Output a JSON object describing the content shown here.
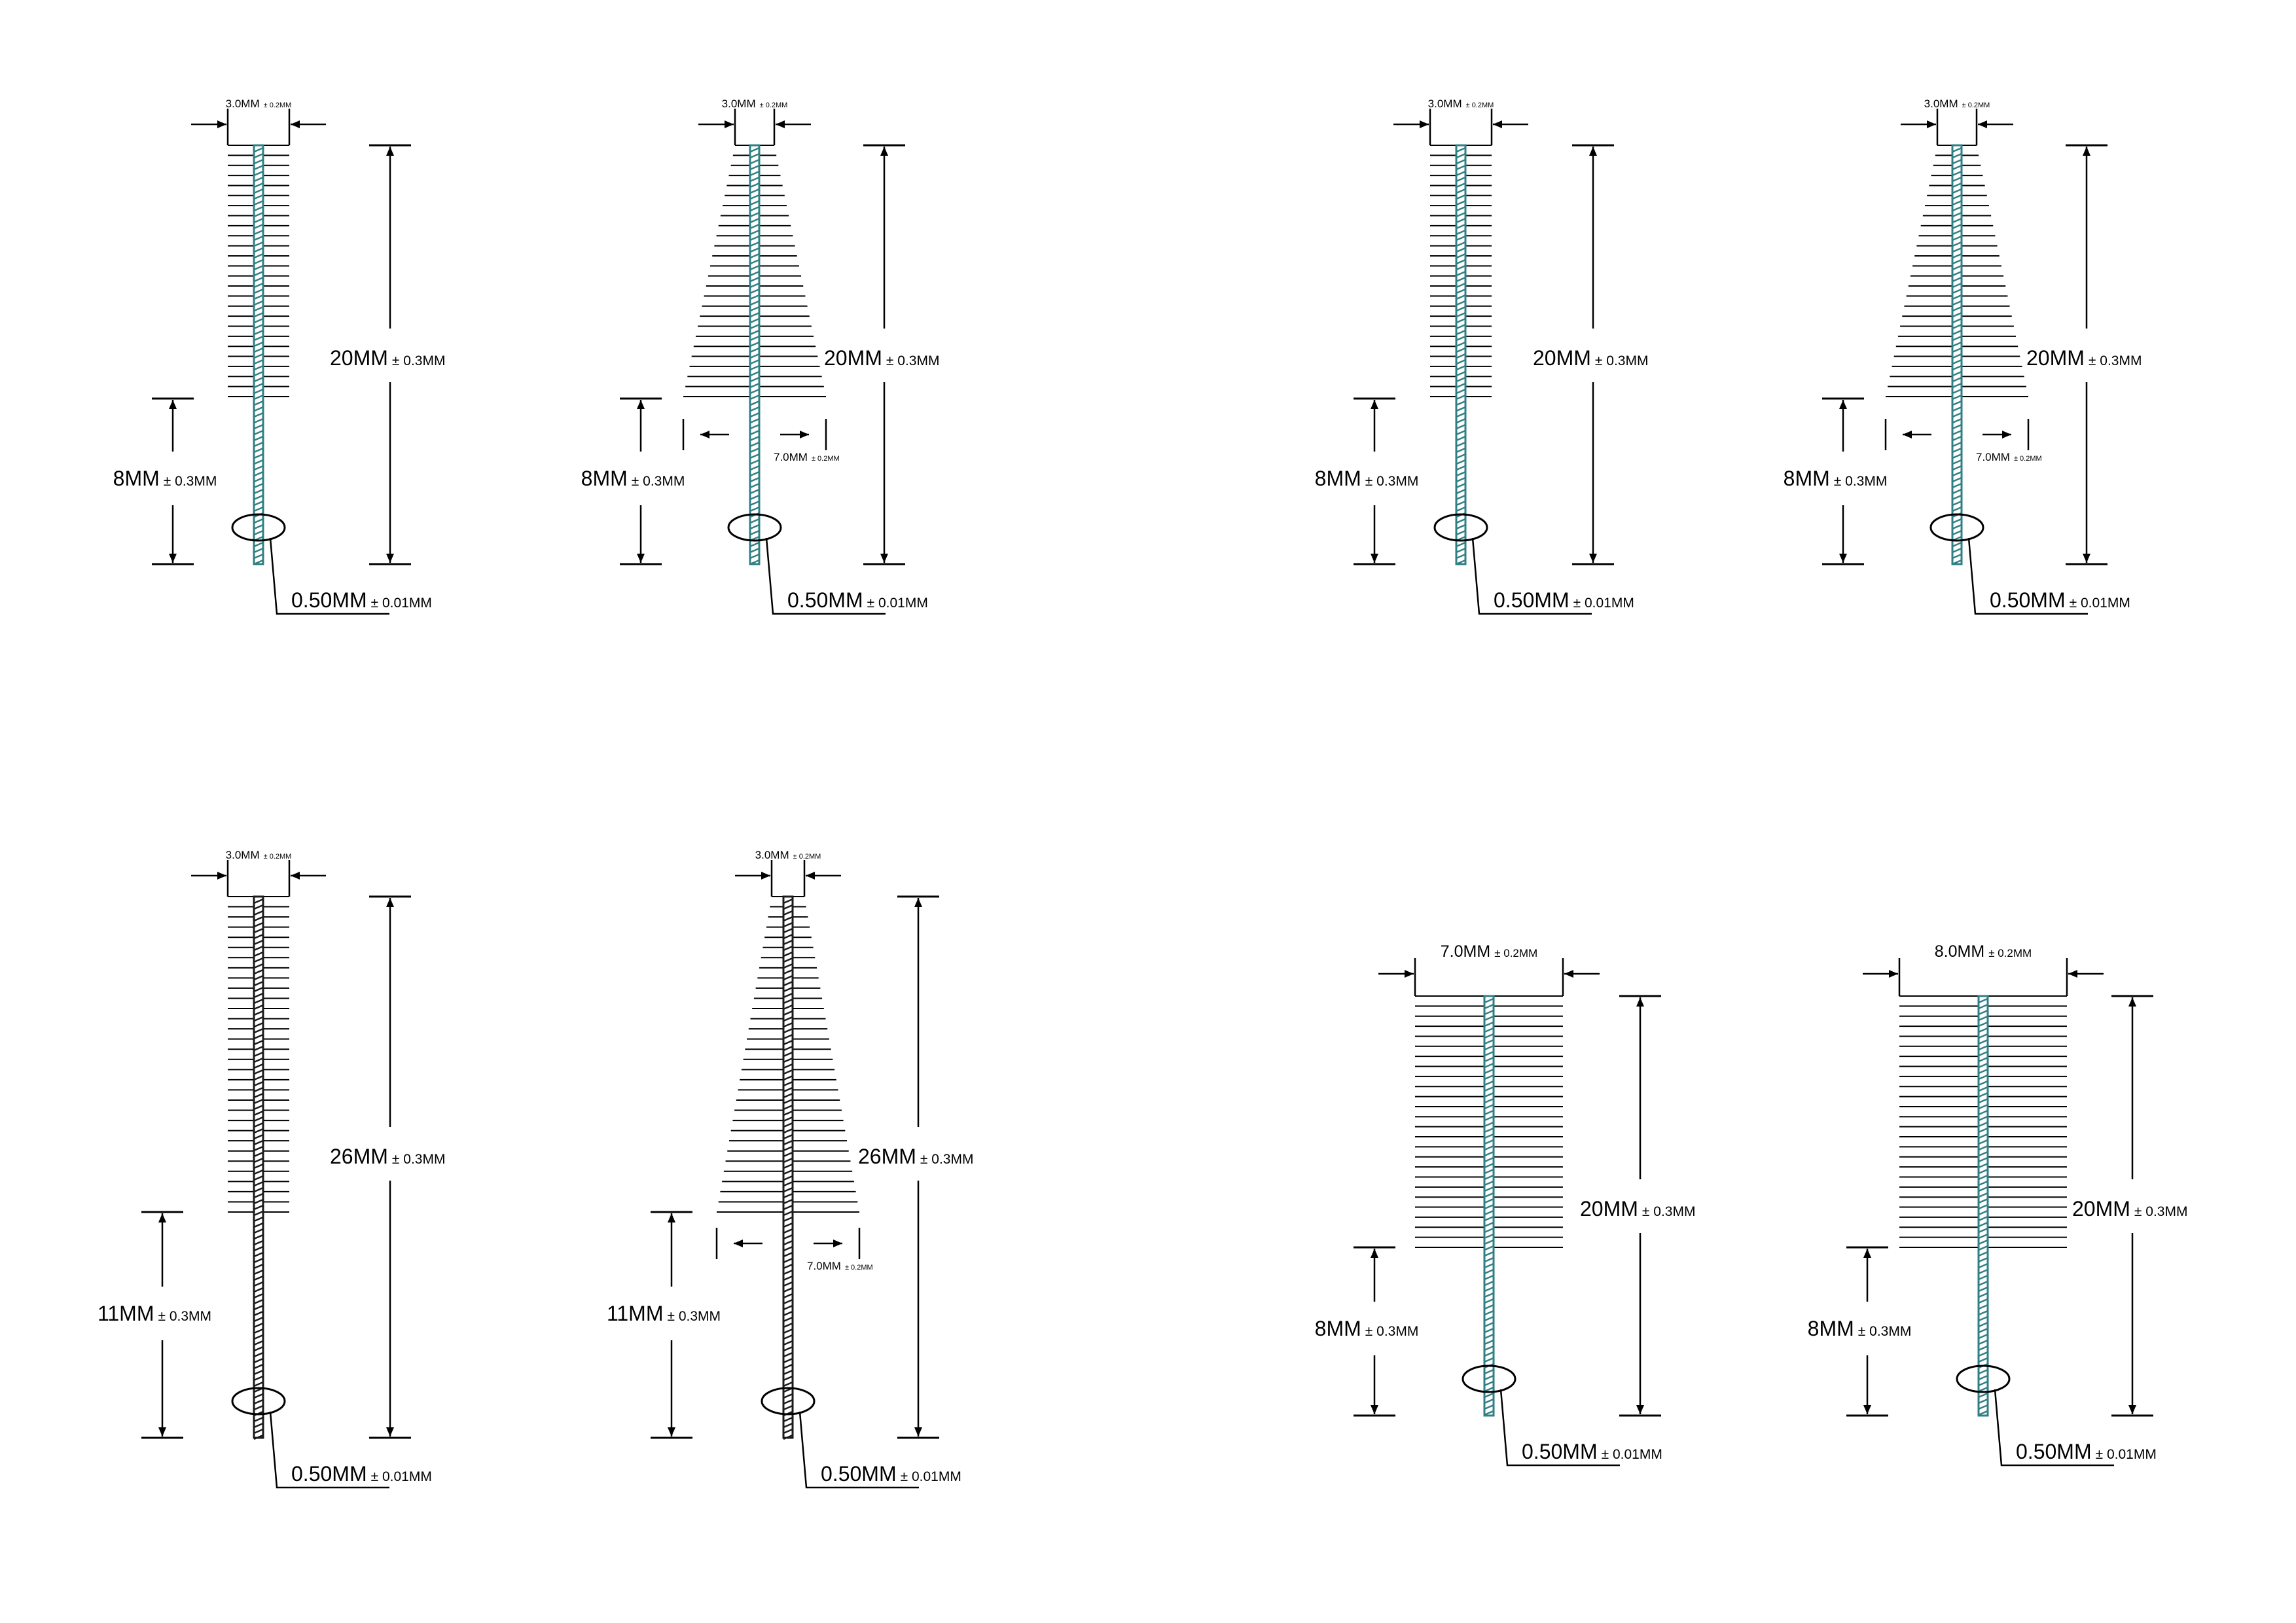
{
  "colors": {
    "line": "#000000",
    "wire_teal": "#2f7f84",
    "wire_dark": "#1a1a1a",
    "background": "#ffffff"
  },
  "drawings": [
    {
      "id": "brush-1",
      "shape": "straight",
      "wire": "teal",
      "top_width": {
        "value": "3.0MM",
        "tol": "± 0.2MM"
      },
      "total_length": {
        "value": "20MM",
        "tol": "± 0.3MM"
      },
      "handle_length": {
        "value": "8MM",
        "tol": "± 0.3MM"
      },
      "wire_diameter": {
        "value": "0.50MM",
        "tol": "± 0.01MM"
      }
    },
    {
      "id": "brush-2",
      "shape": "tapered",
      "wire": "teal",
      "top_width": {
        "value": "3.0MM",
        "tol": "± 0.2MM"
      },
      "total_length": {
        "value": "20MM",
        "tol": "± 0.3MM"
      },
      "handle_length": {
        "value": "8MM",
        "tol": "± 0.3MM"
      },
      "bottom_width": {
        "value": "7.0MM",
        "tol": "± 0.2MM"
      },
      "wire_diameter": {
        "value": "0.50MM",
        "tol": "± 0.01MM"
      }
    },
    {
      "id": "brush-3",
      "shape": "straight",
      "wire": "teal",
      "top_width": {
        "value": "3.0MM",
        "tol": "± 0.2MM"
      },
      "total_length": {
        "value": "20MM",
        "tol": "± 0.3MM"
      },
      "handle_length": {
        "value": "8MM",
        "tol": "± 0.3MM"
      },
      "wire_diameter": {
        "value": "0.50MM",
        "tol": "± 0.01MM"
      }
    },
    {
      "id": "brush-4",
      "shape": "tapered",
      "wire": "teal",
      "top_width": {
        "value": "3.0MM",
        "tol": "± 0.2MM"
      },
      "total_length": {
        "value": "20MM",
        "tol": "± 0.3MM"
      },
      "handle_length": {
        "value": "8MM",
        "tol": "± 0.3MM"
      },
      "bottom_width": {
        "value": "7.0MM",
        "tol": "± 0.2MM"
      },
      "wire_diameter": {
        "value": "0.50MM",
        "tol": "± 0.01MM"
      }
    },
    {
      "id": "brush-5",
      "shape": "straight",
      "wire": "dark",
      "top_width": {
        "value": "3.0MM",
        "tol": "± 0.2MM"
      },
      "total_length": {
        "value": "26MM",
        "tol": "± 0.3MM"
      },
      "handle_length": {
        "value": "11MM",
        "tol": "± 0.3MM"
      },
      "wire_diameter": {
        "value": "0.50MM",
        "tol": "± 0.01MM"
      }
    },
    {
      "id": "brush-6",
      "shape": "tapered",
      "wire": "dark",
      "top_width": {
        "value": "3.0MM",
        "tol": "± 0.2MM"
      },
      "total_length": {
        "value": "26MM",
        "tol": "± 0.3MM"
      },
      "handle_length": {
        "value": "11MM",
        "tol": "± 0.3MM"
      },
      "bottom_width": {
        "value": "7.0MM",
        "tol": "± 0.2MM"
      },
      "wire_diameter": {
        "value": "0.50MM",
        "tol": "± 0.01MM"
      }
    },
    {
      "id": "brush-7",
      "shape": "wide",
      "wire": "teal",
      "top_width": {
        "value": "7.0MM",
        "tol": "± 0.2MM"
      },
      "total_length": {
        "value": "20MM",
        "tol": "± 0.3MM"
      },
      "handle_length": {
        "value": "8MM",
        "tol": "± 0.3MM"
      },
      "wire_diameter": {
        "value": "0.50MM",
        "tol": "± 0.01MM"
      }
    },
    {
      "id": "brush-8",
      "shape": "wide",
      "wire": "teal",
      "top_width": {
        "value": "8.0MM",
        "tol": "± 0.2MM"
      },
      "total_length": {
        "value": "20MM",
        "tol": "± 0.3MM"
      },
      "handle_length": {
        "value": "8MM",
        "tol": "± 0.3MM"
      },
      "wire_diameter": {
        "value": "0.50MM",
        "tol": "± 0.01MM"
      }
    }
  ]
}
